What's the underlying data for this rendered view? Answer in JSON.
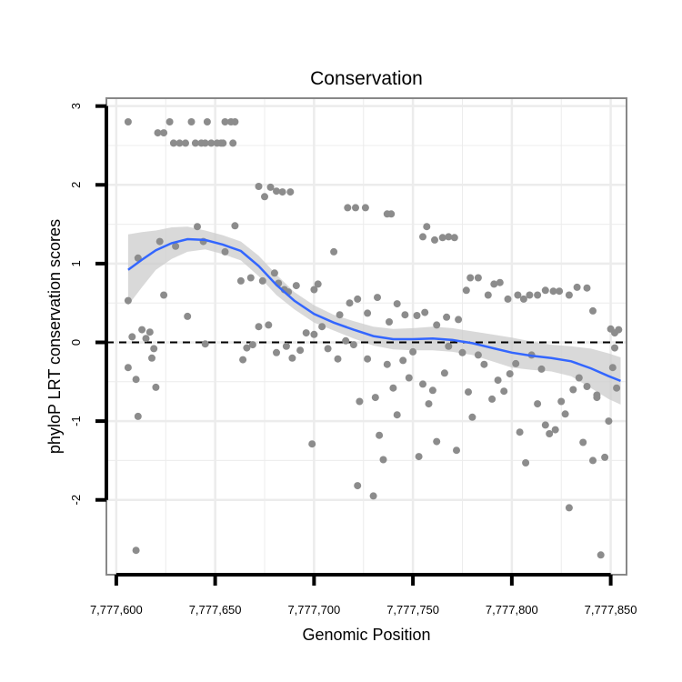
{
  "chart_data": {
    "type": "scatter",
    "title": "Conservation",
    "xlabel": "Genomic Position",
    "ylabel": "phyloP LRT conservation scores",
    "xlim": [
      7777595,
      7777858
    ],
    "ylim": [
      -2.95,
      3.1
    ],
    "x_ticks": [
      7777600,
      7777650,
      7777700,
      7777750,
      7777800,
      7777850
    ],
    "x_tick_labels": [
      "7,777,600",
      "7,777,650",
      "7,777,700",
      "7,777,750",
      "7,777,800",
      "7,777,850"
    ],
    "y_ticks": [
      -2,
      -1,
      0,
      1,
      2,
      3
    ],
    "y_tick_labels": [
      "-2",
      "-1",
      "0",
      "1",
      "2",
      "3"
    ],
    "reference_line": {
      "y": 0,
      "style": "dashed"
    },
    "colors": {
      "points": "#8c8c8c",
      "smooth": "#3366ff",
      "band": "#cccccc",
      "grid": "#ececec",
      "frame": "#888888"
    },
    "points": [
      [
        7777606,
        2.8
      ],
      [
        7777627,
        2.8
      ],
      [
        7777629,
        2.53
      ],
      [
        7777632,
        2.53
      ],
      [
        7777635,
        2.53
      ],
      [
        7777638,
        2.8
      ],
      [
        7777640,
        2.53
      ],
      [
        7777643,
        2.53
      ],
      [
        7777646,
        2.8
      ],
      [
        7777648,
        2.53
      ],
      [
        7777651,
        2.53
      ],
      [
        7777654,
        2.53
      ],
      [
        7777655,
        2.8
      ],
      [
        7777658,
        2.8
      ],
      [
        7777660,
        2.8
      ],
      [
        7777659,
        2.53
      ],
      [
        7777621,
        2.66
      ],
      [
        7777624,
        2.66
      ],
      [
        7777645,
        2.53
      ],
      [
        7777653,
        2.53
      ],
      [
        7777672,
        1.98
      ],
      [
        7777675,
        1.85
      ],
      [
        7777678,
        1.97
      ],
      [
        7777681,
        1.92
      ],
      [
        7777684,
        1.91
      ],
      [
        7777688,
        1.91
      ],
      [
        7777717,
        1.71
      ],
      [
        7777721,
        1.71
      ],
      [
        7777726,
        1.71
      ],
      [
        7777737,
        1.63
      ],
      [
        7777739,
        1.63
      ],
      [
        7777755,
        1.34
      ],
      [
        7777757,
        1.47
      ],
      [
        7777761,
        1.3
      ],
      [
        7777765,
        1.33
      ],
      [
        7777768,
        1.34
      ],
      [
        7777771,
        1.33
      ],
      [
        7777622,
        1.28
      ],
      [
        7777630,
        1.22
      ],
      [
        7777641,
        1.47
      ],
      [
        7777644,
        1.28
      ],
      [
        7777655,
        1.15
      ],
      [
        7777660,
        1.48
      ],
      [
        7777663,
        0.78
      ],
      [
        7777668,
        0.82
      ],
      [
        7777674,
        0.78
      ],
      [
        7777680,
        0.88
      ],
      [
        7777685,
        0.67
      ],
      [
        7777611,
        1.07
      ],
      [
        7777606,
        0.53
      ],
      [
        7777624,
        0.6
      ],
      [
        7777636,
        0.33
      ],
      [
        7777682,
        0.75
      ],
      [
        7777687,
        0.64
      ],
      [
        7777691,
        0.72
      ],
      [
        7777700,
        0.67
      ],
      [
        7777702,
        0.74
      ],
      [
        7777710,
        1.15
      ],
      [
        7777713,
        0.35
      ],
      [
        7777718,
        0.5
      ],
      [
        7777722,
        0.55
      ],
      [
        7777727,
        0.37
      ],
      [
        7777732,
        0.57
      ],
      [
        7777738,
        0.26
      ],
      [
        7777742,
        0.49
      ],
      [
        7777746,
        0.35
      ],
      [
        7777752,
        0.34
      ],
      [
        7777756,
        0.38
      ],
      [
        7777762,
        0.22
      ],
      [
        7777767,
        0.32
      ],
      [
        7777773,
        0.29
      ],
      [
        7777777,
        0.66
      ],
      [
        7777779,
        0.82
      ],
      [
        7777783,
        0.82
      ],
      [
        7777788,
        0.6
      ],
      [
        7777791,
        0.74
      ],
      [
        7777794,
        0.76
      ],
      [
        7777798,
        0.55
      ],
      [
        7777803,
        0.6
      ],
      [
        7777806,
        0.55
      ],
      [
        7777809,
        0.6
      ],
      [
        7777813,
        0.6
      ],
      [
        7777817,
        0.66
      ],
      [
        7777821,
        0.65
      ],
      [
        7777824,
        0.65
      ],
      [
        7777829,
        0.6
      ],
      [
        7777833,
        0.7
      ],
      [
        7777838,
        0.69
      ],
      [
        7777841,
        0.4
      ],
      [
        7777850,
        0.17
      ],
      [
        7777852,
        0.12
      ],
      [
        7777854,
        0.16
      ],
      [
        7777606,
        -0.32
      ],
      [
        7777608,
        0.07
      ],
      [
        7777610,
        -0.47
      ],
      [
        7777611,
        -0.94
      ],
      [
        7777613,
        0.16
      ],
      [
        7777615,
        0.05
      ],
      [
        7777617,
        0.13
      ],
      [
        7777618,
        -0.2
      ],
      [
        7777619,
        -0.08
      ],
      [
        7777620,
        -0.57
      ],
      [
        7777610,
        -2.64
      ],
      [
        7777645,
        -0.02
      ],
      [
        7777664,
        -0.22
      ],
      [
        7777666,
        -0.07
      ],
      [
        7777669,
        -0.03
      ],
      [
        7777672,
        0.2
      ],
      [
        7777677,
        0.22
      ],
      [
        7777681,
        -0.13
      ],
      [
        7777686,
        -0.05
      ],
      [
        7777689,
        -0.2
      ],
      [
        7777693,
        -0.1
      ],
      [
        7777696,
        0.12
      ],
      [
        7777699,
        -1.29
      ],
      [
        7777700,
        0.1
      ],
      [
        7777704,
        0.2
      ],
      [
        7777707,
        -0.08
      ],
      [
        7777712,
        -0.21
      ],
      [
        7777716,
        0.02
      ],
      [
        7777720,
        -0.03
      ],
      [
        7777723,
        -0.75
      ],
      [
        7777722,
        -1.82
      ],
      [
        7777727,
        -0.21
      ],
      [
        7777730,
        -1.95
      ],
      [
        7777731,
        -0.7
      ],
      [
        7777733,
        -1.18
      ],
      [
        7777735,
        -1.49
      ],
      [
        7777737,
        -0.28
      ],
      [
        7777740,
        -0.58
      ],
      [
        7777742,
        -0.92
      ],
      [
        7777745,
        -0.23
      ],
      [
        7777748,
        -0.45
      ],
      [
        7777750,
        -0.12
      ],
      [
        7777753,
        -1.45
      ],
      [
        7777755,
        -0.53
      ],
      [
        7777758,
        -0.78
      ],
      [
        7777760,
        -0.61
      ],
      [
        7777762,
        -1.26
      ],
      [
        7777766,
        -0.39
      ],
      [
        7777768,
        -0.05
      ],
      [
        7777772,
        -1.37
      ],
      [
        7777775,
        -0.13
      ],
      [
        7777778,
        -0.63
      ],
      [
        7777780,
        -0.95
      ],
      [
        7777783,
        -0.16
      ],
      [
        7777786,
        -0.28
      ],
      [
        7777790,
        -0.72
      ],
      [
        7777793,
        -0.48
      ],
      [
        7777796,
        -0.62
      ],
      [
        7777799,
        -0.4
      ],
      [
        7777802,
        -0.27
      ],
      [
        7777804,
        -1.14
      ],
      [
        7777807,
        -1.53
      ],
      [
        7777810,
        -0.16
      ],
      [
        7777813,
        -0.78
      ],
      [
        7777815,
        -0.34
      ],
      [
        7777817,
        -1.05
      ],
      [
        7777819,
        -1.16
      ],
      [
        7777822,
        -1.11
      ],
      [
        7777825,
        -0.75
      ],
      [
        7777827,
        -0.91
      ],
      [
        7777829,
        -2.1
      ],
      [
        7777831,
        -0.6
      ],
      [
        7777834,
        -0.45
      ],
      [
        7777836,
        -1.27
      ],
      [
        7777838,
        -0.56
      ],
      [
        7777841,
        -1.5
      ],
      [
        7777843,
        -0.67
      ],
      [
        7777845,
        -2.7
      ],
      [
        7777847,
        -1.46
      ],
      [
        7777849,
        -1.0
      ],
      [
        7777851,
        -0.32
      ],
      [
        7777853,
        -0.58
      ],
      [
        7777852,
        -0.07
      ],
      [
        7777843,
        -0.7
      ]
    ],
    "smooth_line": {
      "x": [
        7777606,
        7777613,
        7777620,
        7777628,
        7777636,
        7777645,
        7777654,
        7777663,
        7777672,
        7777681,
        7777690,
        7777700,
        7777710,
        7777720,
        7777730,
        7777740,
        7777750,
        7777760,
        7777770,
        7777780,
        7777790,
        7777800,
        7777810,
        7777820,
        7777830,
        7777840,
        7777849,
        7777855
      ],
      "y": [
        0.92,
        1.05,
        1.17,
        1.26,
        1.31,
        1.3,
        1.24,
        1.16,
        0.97,
        0.73,
        0.53,
        0.36,
        0.25,
        0.16,
        0.08,
        0.04,
        0.04,
        0.05,
        0.03,
        -0.01,
        -0.07,
        -0.13,
        -0.17,
        -0.2,
        -0.24,
        -0.33,
        -0.43,
        -0.49
      ],
      "upper": [
        1.37,
        1.4,
        1.42,
        1.46,
        1.47,
        1.42,
        1.36,
        1.28,
        1.1,
        0.86,
        0.64,
        0.47,
        0.35,
        0.27,
        0.2,
        0.17,
        0.18,
        0.2,
        0.18,
        0.14,
        0.1,
        0.06,
        0.01,
        -0.03,
        -0.05,
        -0.08,
        -0.14,
        -0.19
      ],
      "lower": [
        0.47,
        0.7,
        0.92,
        1.06,
        1.15,
        1.18,
        1.12,
        1.04,
        0.84,
        0.6,
        0.42,
        0.25,
        0.15,
        0.05,
        -0.04,
        -0.09,
        -0.1,
        -0.1,
        -0.12,
        -0.16,
        -0.24,
        -0.32,
        -0.35,
        -0.37,
        -0.43,
        -0.58,
        -0.72,
        -0.79
      ]
    }
  }
}
